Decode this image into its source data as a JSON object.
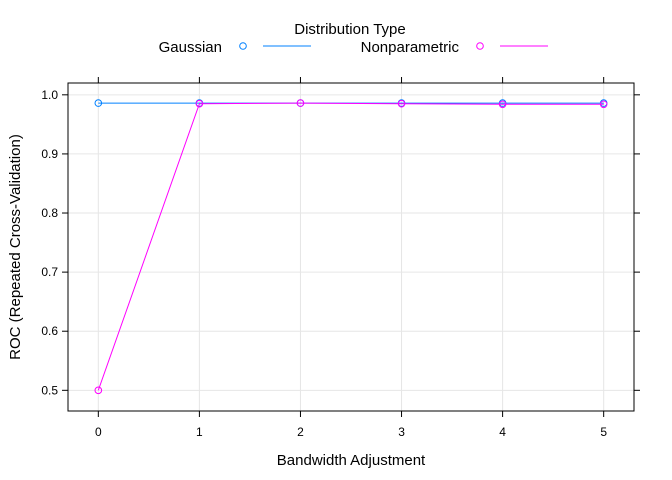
{
  "chart_data": {
    "type": "line",
    "title": "",
    "xlabel": "Bandwidth Adjustment",
    "ylabel": "ROC (Repeated Cross-Validation)",
    "legend_title": "Distribution Type",
    "legend_position": "top",
    "grid": true,
    "xlim": [
      -0.3,
      5.3
    ],
    "ylim": [
      0.465,
      1.02
    ],
    "x_ticks": [
      0,
      1,
      2,
      3,
      4,
      5
    ],
    "y_ticks": [
      0.5,
      0.6,
      0.7,
      0.8,
      0.9,
      1.0
    ],
    "x_tick_labels": [
      "0",
      "1",
      "2",
      "3",
      "4",
      "5"
    ],
    "y_tick_labels": [
      "0.5",
      "0.6",
      "0.7",
      "0.8",
      "0.9",
      "1.0"
    ],
    "series": [
      {
        "name": "Gaussian",
        "color": "#0080ff",
        "x": [
          0,
          1,
          2,
          3,
          4,
          5
        ],
        "values": [
          0.986,
          0.986,
          0.986,
          0.986,
          0.986,
          0.986
        ]
      },
      {
        "name": "Nonparametric",
        "color": "#ff00ff",
        "x": [
          0,
          1,
          2,
          3,
          4,
          5
        ],
        "values": [
          0.5,
          0.985,
          0.986,
          0.985,
          0.984,
          0.984
        ]
      }
    ]
  }
}
